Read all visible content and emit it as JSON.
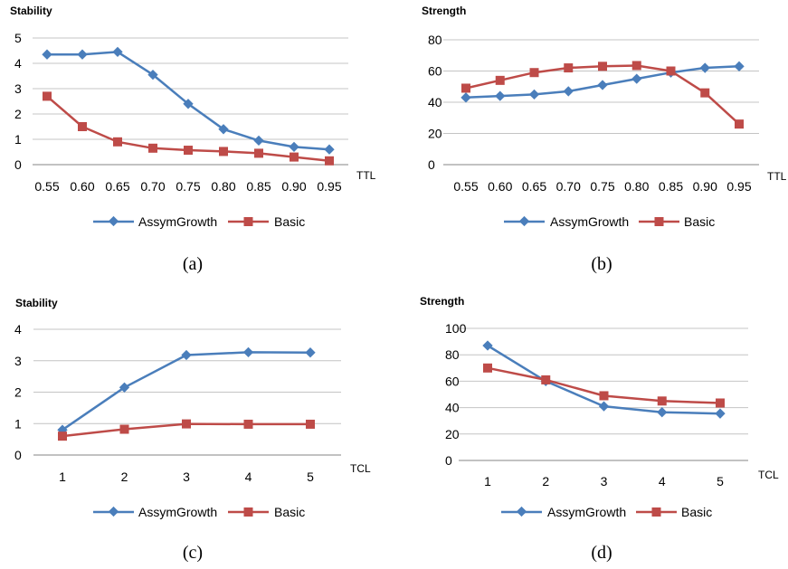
{
  "colors": {
    "assym": "#4a7ebb",
    "basic": "#be4b48",
    "grid": "#c4c4c4",
    "axis": "#868686"
  },
  "chart_data": [
    {
      "type": "line",
      "caption": "(a)",
      "title": "",
      "xlabel": "TTL",
      "ylabel": "Stability",
      "categories": [
        "0.55",
        "0.60",
        "0.65",
        "0.70",
        "0.75",
        "0.80",
        "0.85",
        "0.90",
        "0.95"
      ],
      "ylim": [
        0,
        5
      ],
      "yticks": [
        0,
        1,
        2,
        3,
        4,
        5
      ],
      "grid": true,
      "legend": "bottom",
      "series": [
        {
          "name": "AssymGrowth",
          "marker": "diamond",
          "values": [
            4.35,
            4.35,
            4.45,
            3.55,
            2.4,
            1.4,
            0.95,
            0.7,
            0.6
          ]
        },
        {
          "name": "Basic",
          "marker": "square",
          "values": [
            2.7,
            1.5,
            0.9,
            0.65,
            0.57,
            0.52,
            0.45,
            0.3,
            0.15
          ]
        }
      ]
    },
    {
      "type": "line",
      "caption": "(b)",
      "title": "",
      "xlabel": "TTL",
      "ylabel": "Strength",
      "categories": [
        "0.55",
        "0.60",
        "0.65",
        "0.70",
        "0.75",
        "0.80",
        "0.85",
        "0.90",
        "0.95"
      ],
      "ylim": [
        0,
        80
      ],
      "yticks": [
        0,
        20,
        40,
        60,
        80
      ],
      "grid": true,
      "legend": "bottom",
      "series": [
        {
          "name": "AssymGrowth",
          "marker": "diamond",
          "values": [
            43,
            44,
            45,
            47,
            51,
            55,
            59,
            62,
            63
          ]
        },
        {
          "name": "Basic",
          "marker": "square",
          "values": [
            49,
            54,
            59,
            62,
            63,
            63.5,
            60,
            46,
            26
          ]
        }
      ]
    },
    {
      "type": "line",
      "caption": "(c)",
      "title": "",
      "xlabel": "TCL",
      "ylabel": "Stability",
      "categories": [
        "1",
        "2",
        "3",
        "4",
        "5"
      ],
      "ylim": [
        0,
        4
      ],
      "yticks": [
        0,
        1,
        2,
        3,
        4
      ],
      "grid": true,
      "legend": "bottom",
      "series": [
        {
          "name": "AssymGrowth",
          "marker": "diamond",
          "values": [
            0.8,
            2.15,
            3.18,
            3.27,
            3.26
          ]
        },
        {
          "name": "Basic",
          "marker": "square",
          "values": [
            0.6,
            0.82,
            0.99,
            0.98,
            0.98
          ]
        }
      ]
    },
    {
      "type": "line",
      "caption": "(d)",
      "title": "",
      "xlabel": "TCL",
      "ylabel": "Strength",
      "categories": [
        "1",
        "2",
        "3",
        "4",
        "5"
      ],
      "ylim": [
        0,
        100
      ],
      "yticks": [
        0,
        20,
        40,
        60,
        80,
        100
      ],
      "grid": true,
      "legend": "bottom",
      "series": [
        {
          "name": "AssymGrowth",
          "marker": "diamond",
          "values": [
            87,
            60,
            41,
            36.5,
            35.5
          ]
        },
        {
          "name": "Basic",
          "marker": "square",
          "values": [
            70,
            61,
            49,
            45,
            43.5
          ]
        }
      ]
    }
  ]
}
